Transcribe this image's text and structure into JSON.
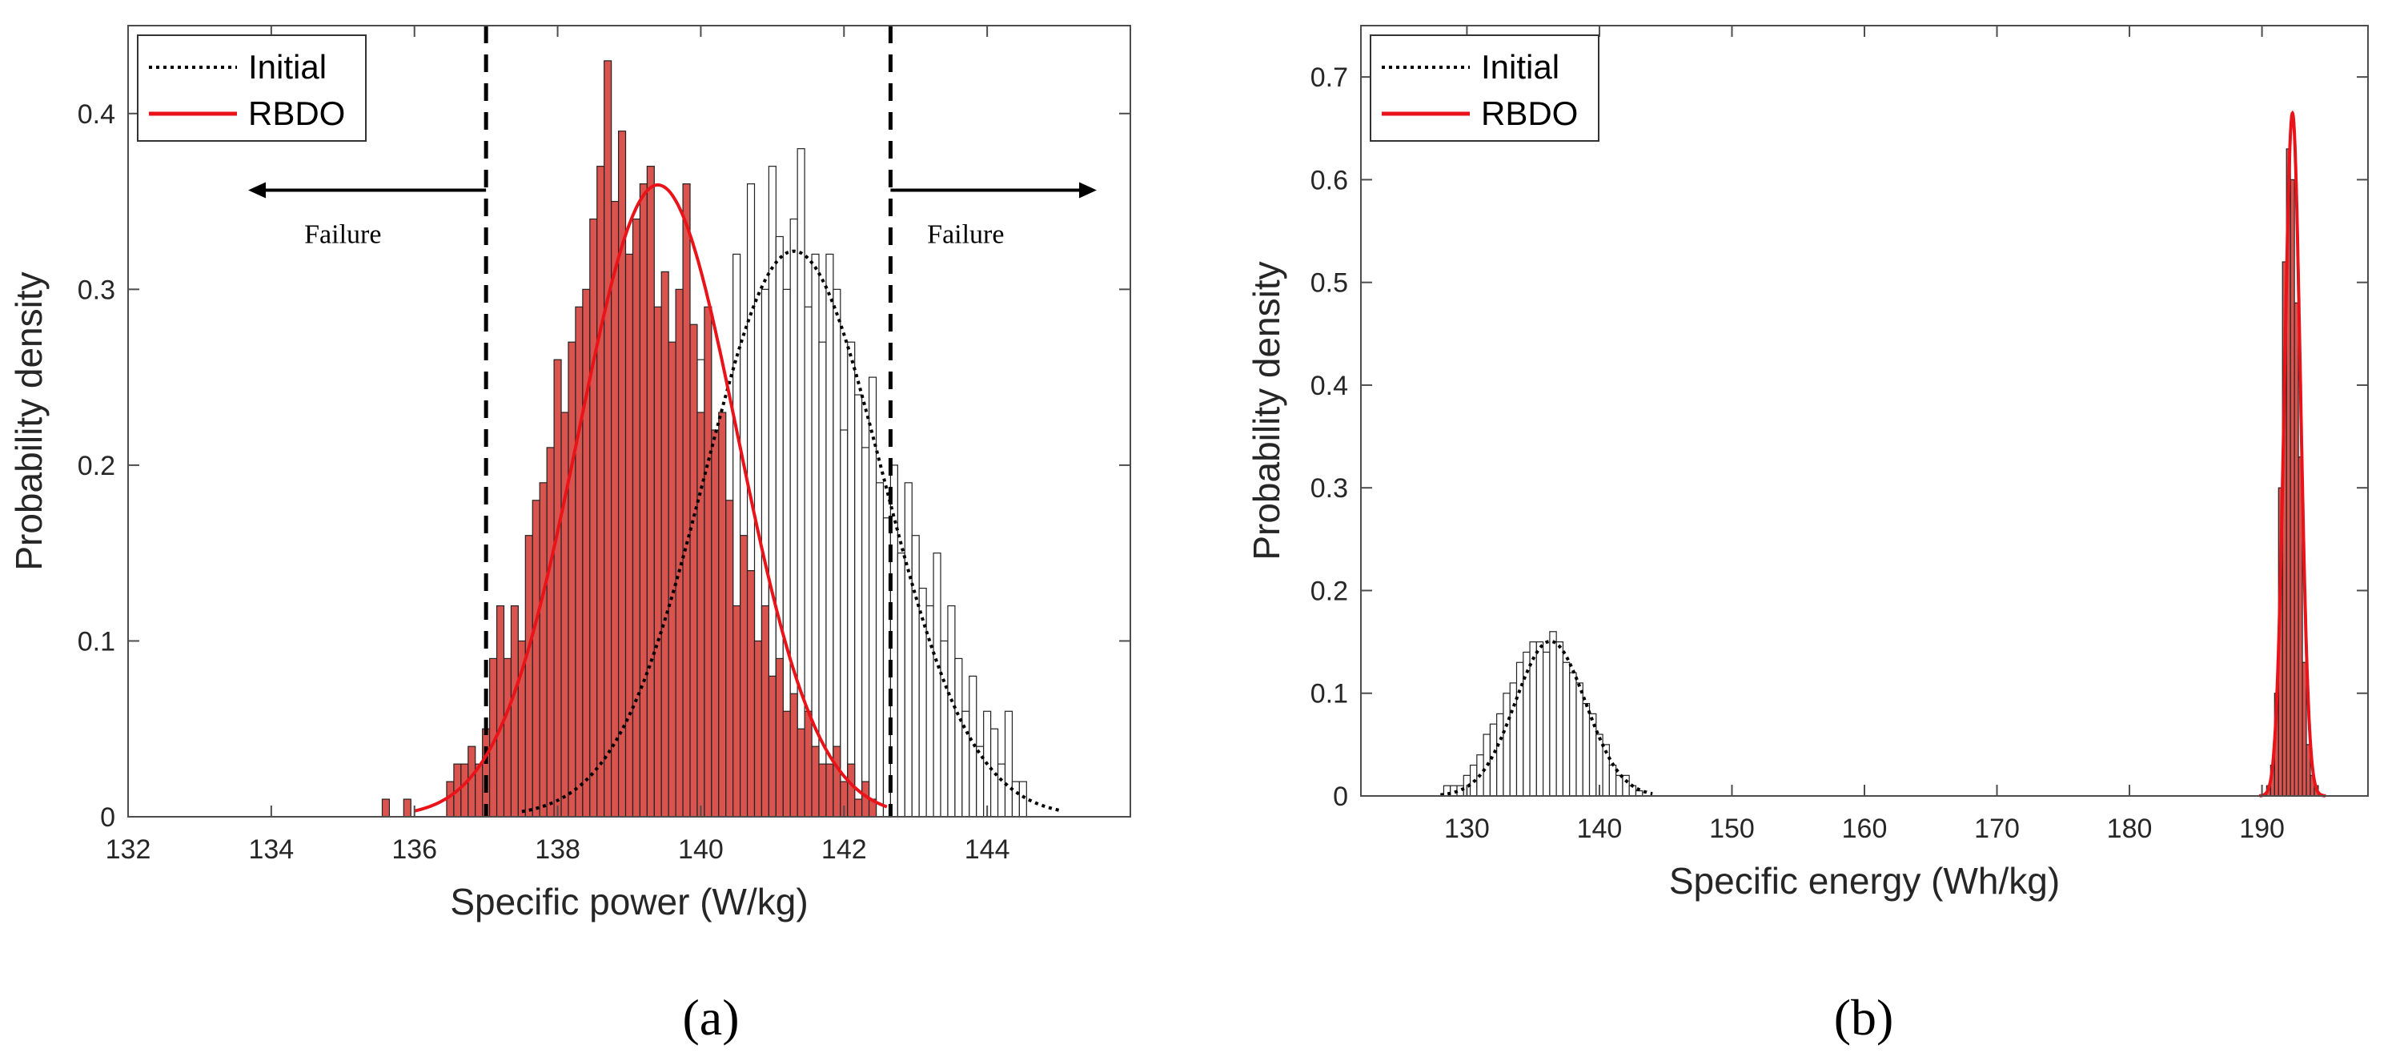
{
  "panel_labels": [
    "(a)",
    "(b)"
  ],
  "chart_data": [
    {
      "type": "bar",
      "panel": "(a)",
      "title": "",
      "xlabel": "Specific power (W/kg)",
      "ylabel": "Probability density",
      "xlim": [
        132,
        146
      ],
      "ylim": [
        0,
        0.45
      ],
      "xticks": [
        132,
        134,
        136,
        138,
        140,
        142,
        144
      ],
      "yticks": [
        0,
        0.1,
        0.2,
        0.3,
        0.4
      ],
      "grid": false,
      "legend": {
        "position": "top-left",
        "entries": [
          "Initial",
          "RBDO"
        ]
      },
      "colors": {
        "rbdo": "#d9534f",
        "rbdo_line": "#e8141a",
        "initial_fill": "#ffffff",
        "initial_line": "#000000"
      },
      "annotations": [
        {
          "text": "Failure",
          "x": 135.0,
          "y": 0.33,
          "arrow": "left"
        },
        {
          "text": "Failure",
          "x": 143.7,
          "y": 0.33,
          "arrow": "right"
        }
      ],
      "limit_lines": [
        137.0,
        142.65
      ],
      "series": [
        {
          "name": "Initial",
          "kind": "histogram",
          "bin_width": 0.1,
          "x": [
            138.5,
            139.0,
            139.5,
            140.0,
            140.5,
            140.7,
            140.9,
            141.0,
            141.1,
            141.2,
            141.3,
            141.4,
            141.5,
            141.6,
            141.7,
            141.8,
            141.9,
            142.0,
            142.1,
            142.2,
            142.3,
            142.4,
            142.5,
            142.6,
            142.7,
            142.8,
            142.9,
            143.0,
            143.1,
            143.2,
            143.3,
            143.4,
            143.5,
            143.6,
            143.7,
            143.8,
            143.9,
            144.0,
            144.1,
            144.2,
            144.3,
            144.4,
            144.5
          ],
          "values": [
            0.04,
            0.1,
            0.18,
            0.26,
            0.32,
            0.36,
            0.3,
            0.37,
            0.33,
            0.3,
            0.34,
            0.38,
            0.29,
            0.32,
            0.27,
            0.32,
            0.3,
            0.22,
            0.27,
            0.24,
            0.21,
            0.25,
            0.19,
            0.17,
            0.2,
            0.15,
            0.19,
            0.16,
            0.13,
            0.12,
            0.15,
            0.1,
            0.12,
            0.09,
            0.06,
            0.08,
            0.04,
            0.06,
            0.05,
            0.03,
            0.06,
            0.02,
            0.02
          ]
        },
        {
          "name": "Initial",
          "kind": "pdf",
          "distribution": "normal",
          "mean": 141.3,
          "std": 1.24,
          "range": [
            137.5,
            145.0
          ]
        },
        {
          "name": "RBDO",
          "kind": "histogram",
          "bin_width": 0.1,
          "x": [
            135.6,
            135.9,
            136.5,
            136.6,
            136.7,
            136.8,
            136.9,
            137.0,
            137.1,
            137.2,
            137.3,
            137.4,
            137.5,
            137.6,
            137.7,
            137.8,
            137.9,
            138.0,
            138.1,
            138.2,
            138.3,
            138.4,
            138.5,
            138.6,
            138.7,
            138.8,
            138.9,
            139.0,
            139.1,
            139.2,
            139.3,
            139.4,
            139.5,
            139.6,
            139.7,
            139.8,
            139.9,
            140.0,
            140.1,
            140.2,
            140.3,
            140.4,
            140.5,
            140.6,
            140.7,
            140.8,
            140.9,
            141.0,
            141.1,
            141.2,
            141.3,
            141.4,
            141.5,
            141.6,
            141.7,
            141.8,
            141.9,
            142.0,
            142.1,
            142.2,
            142.3,
            142.4
          ],
          "values": [
            0.01,
            0.01,
            0.02,
            0.03,
            0.03,
            0.04,
            0.03,
            0.05,
            0.09,
            0.12,
            0.09,
            0.12,
            0.1,
            0.16,
            0.18,
            0.19,
            0.21,
            0.26,
            0.23,
            0.27,
            0.29,
            0.3,
            0.34,
            0.37,
            0.43,
            0.35,
            0.39,
            0.32,
            0.34,
            0.36,
            0.37,
            0.29,
            0.31,
            0.27,
            0.3,
            0.36,
            0.28,
            0.23,
            0.29,
            0.22,
            0.23,
            0.18,
            0.12,
            0.16,
            0.14,
            0.1,
            0.12,
            0.08,
            0.09,
            0.06,
            0.07,
            0.05,
            0.06,
            0.04,
            0.03,
            0.03,
            0.04,
            0.02,
            0.03,
            0.01,
            0.02,
            0.01
          ]
        },
        {
          "name": "RBDO",
          "kind": "pdf",
          "distribution": "normal",
          "mean": 139.4,
          "std": 1.11,
          "range": [
            136.0,
            142.6
          ]
        }
      ]
    },
    {
      "type": "bar",
      "panel": "(b)",
      "title": "",
      "xlabel": "Specific energy (Wh/kg)",
      "ylabel": "Probability density",
      "xlim": [
        122,
        198
      ],
      "ylim": [
        0,
        0.75
      ],
      "xticks": [
        130,
        140,
        150,
        160,
        170,
        180,
        190
      ],
      "yticks": [
        0,
        0.1,
        0.2,
        0.3,
        0.4,
        0.5,
        0.6,
        0.7
      ],
      "grid": false,
      "legend": {
        "position": "top-left",
        "entries": [
          "Initial",
          "RBDO"
        ]
      },
      "colors": {
        "rbdo": "#d9534f",
        "rbdo_line": "#e8141a",
        "initial_fill": "#ffffff",
        "initial_line": "#000000"
      },
      "series": [
        {
          "name": "Initial",
          "kind": "histogram",
          "bin_width": 0.5,
          "x": [
            128.5,
            129.0,
            129.5,
            130.0,
            130.5,
            131.0,
            131.5,
            132.0,
            132.5,
            133.0,
            133.5,
            134.0,
            134.5,
            135.0,
            135.5,
            136.0,
            136.5,
            137.0,
            137.5,
            138.0,
            138.5,
            139.0,
            139.5,
            140.0,
            140.5,
            141.0,
            141.5,
            142.0,
            142.5,
            143.0
          ],
          "values": [
            0.01,
            0.01,
            0.01,
            0.02,
            0.03,
            0.04,
            0.06,
            0.07,
            0.08,
            0.1,
            0.11,
            0.13,
            0.14,
            0.15,
            0.15,
            0.14,
            0.16,
            0.15,
            0.13,
            0.12,
            0.11,
            0.09,
            0.08,
            0.06,
            0.05,
            0.03,
            0.02,
            0.02,
            0.01,
            0.005
          ]
        },
        {
          "name": "Initial",
          "kind": "pdf",
          "distribution": "normal",
          "mean": 136.3,
          "std": 2.65,
          "range": [
            128.0,
            144.0
          ]
        },
        {
          "name": "RBDO",
          "kind": "histogram",
          "bin_width": 0.3,
          "x": [
            190.5,
            190.8,
            191.1,
            191.4,
            191.7,
            192.0,
            192.3,
            192.6,
            192.9,
            193.2,
            193.5,
            193.8,
            194.1
          ],
          "values": [
            0.01,
            0.03,
            0.1,
            0.3,
            0.52,
            0.63,
            0.6,
            0.48,
            0.33,
            0.13,
            0.05,
            0.02,
            0.01
          ]
        },
        {
          "name": "RBDO",
          "kind": "pdf",
          "distribution": "normal",
          "mean": 192.3,
          "std": 0.6,
          "range": [
            189.8,
            194.8
          ]
        }
      ]
    }
  ]
}
